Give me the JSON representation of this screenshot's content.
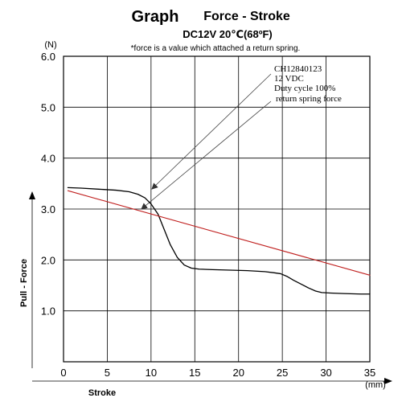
{
  "chart_data": {
    "type": "line",
    "title": "Graph",
    "title_suffix": "Force - Stroke",
    "subtitle": "DC12V  20℃(68ºF)",
    "note": "*force is a value which attached a return spring.",
    "xlabel": "Stroke",
    "ylabel": "Pull - Force",
    "x_unit": "(mm)",
    "y_unit": "(N)",
    "xlim": [
      0,
      35
    ],
    "ylim": [
      0.0,
      6.0
    ],
    "x_ticks": [
      0,
      5,
      10,
      15,
      20,
      25,
      30,
      35
    ],
    "x_tick_labels": [
      "0",
      "5",
      "10",
      "15",
      "20",
      "25",
      "30",
      "35"
    ],
    "y_ticks": [
      1.0,
      2.0,
      3.0,
      4.0,
      5.0,
      6.0
    ],
    "y_tick_labels": [
      "1.0",
      "2.0",
      "3.0",
      "4.0",
      "5.0",
      "6.0"
    ],
    "grid": true,
    "annotation_lines": [
      "CH12840123",
      "12 VDC",
      "Duty cycle 100%",
      "return spring force"
    ],
    "series": [
      {
        "name": "Duty cycle 100%",
        "color": "#000000",
        "x": [
          0.5,
          2,
          4,
          6,
          7.5,
          8.5,
          9.3,
          10,
          10.8,
          11.5,
          12.2,
          13,
          13.8,
          14.6,
          15.5,
          17,
          19,
          21,
          23,
          24,
          24.8,
          25.5,
          26.3,
          27.2,
          28,
          28.8,
          29.5,
          30.5,
          32,
          34,
          35
        ],
        "values": [
          3.42,
          3.41,
          3.39,
          3.37,
          3.34,
          3.29,
          3.22,
          3.1,
          2.9,
          2.6,
          2.3,
          2.05,
          1.9,
          1.84,
          1.82,
          1.81,
          1.8,
          1.79,
          1.77,
          1.75,
          1.73,
          1.68,
          1.6,
          1.52,
          1.45,
          1.39,
          1.36,
          1.35,
          1.34,
          1.33,
          1.33
        ]
      },
      {
        "name": "return spring force",
        "color": "#c0201f",
        "x": [
          0.5,
          35
        ],
        "values": [
          3.36,
          1.7
        ]
      }
    ]
  }
}
